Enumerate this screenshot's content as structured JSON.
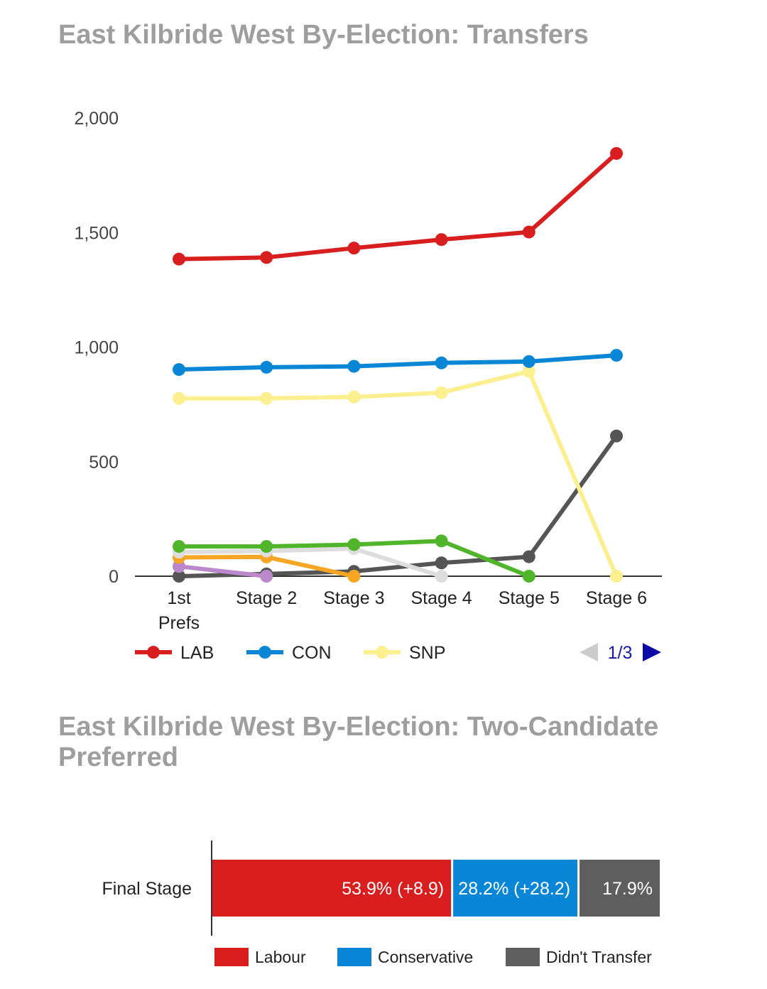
{
  "chart_data": [
    {
      "type": "line",
      "title": "East Kilbride West By-Election: Transfers",
      "categories": [
        "1st Prefs",
        "Stage 2",
        "Stage 3",
        "Stage 4",
        "Stage 5",
        "Stage 6"
      ],
      "ylim": [
        0,
        2000
      ],
      "yticks": [
        "2,000",
        "1,500",
        "1,000",
        "500",
        "0"
      ],
      "grid": false,
      "legend_position": "bottom",
      "pagination": "1/3",
      "series": [
        {
          "name": "LAB",
          "color": "#d81e1e",
          "values": [
            1384,
            1391,
            1432,
            1469,
            1502,
            1845
          ]
        },
        {
          "name": "CON",
          "color": "#0a86d6",
          "values": [
            902,
            912,
            916,
            931,
            937,
            964
          ]
        },
        {
          "name": "SNP",
          "color": "#fbef8f",
          "values": [
            776,
            776,
            782,
            801,
            894,
            0
          ]
        },
        {
          "color": "#50b52a",
          "values": [
            130,
            130,
            138,
            154,
            0,
            null
          ]
        },
        {
          "color": "#dddddd",
          "values": [
            105,
            110,
            120,
            0,
            null,
            null
          ]
        },
        {
          "color": "#f6a623",
          "values": [
            82,
            84,
            0,
            null,
            null,
            null
          ]
        },
        {
          "color": "#bb88cc",
          "values": [
            43,
            0,
            null,
            null,
            null,
            null
          ]
        },
        {
          "color": "#555555",
          "values": [
            0,
            10,
            21,
            58,
            85,
            612
          ]
        }
      ]
    },
    {
      "type": "bar",
      "title": "East Kilbride West By-Election: Two-Candidate Preferred",
      "stacked": true,
      "orientation": "horizontal",
      "categories": [
        "Final Stage"
      ],
      "series": [
        {
          "name": "Labour",
          "color": "#d81e1e",
          "values": [
            53.9
          ],
          "label": "53.9% (+8.9)"
        },
        {
          "name": "Conservative",
          "color": "#0a86d6",
          "values": [
            28.2
          ],
          "label": "28.2% (+28.2)"
        },
        {
          "name": "Didn't Transfer",
          "color": "#5e5e5e",
          "values": [
            17.9
          ],
          "label": "17.9%"
        }
      ]
    }
  ]
}
